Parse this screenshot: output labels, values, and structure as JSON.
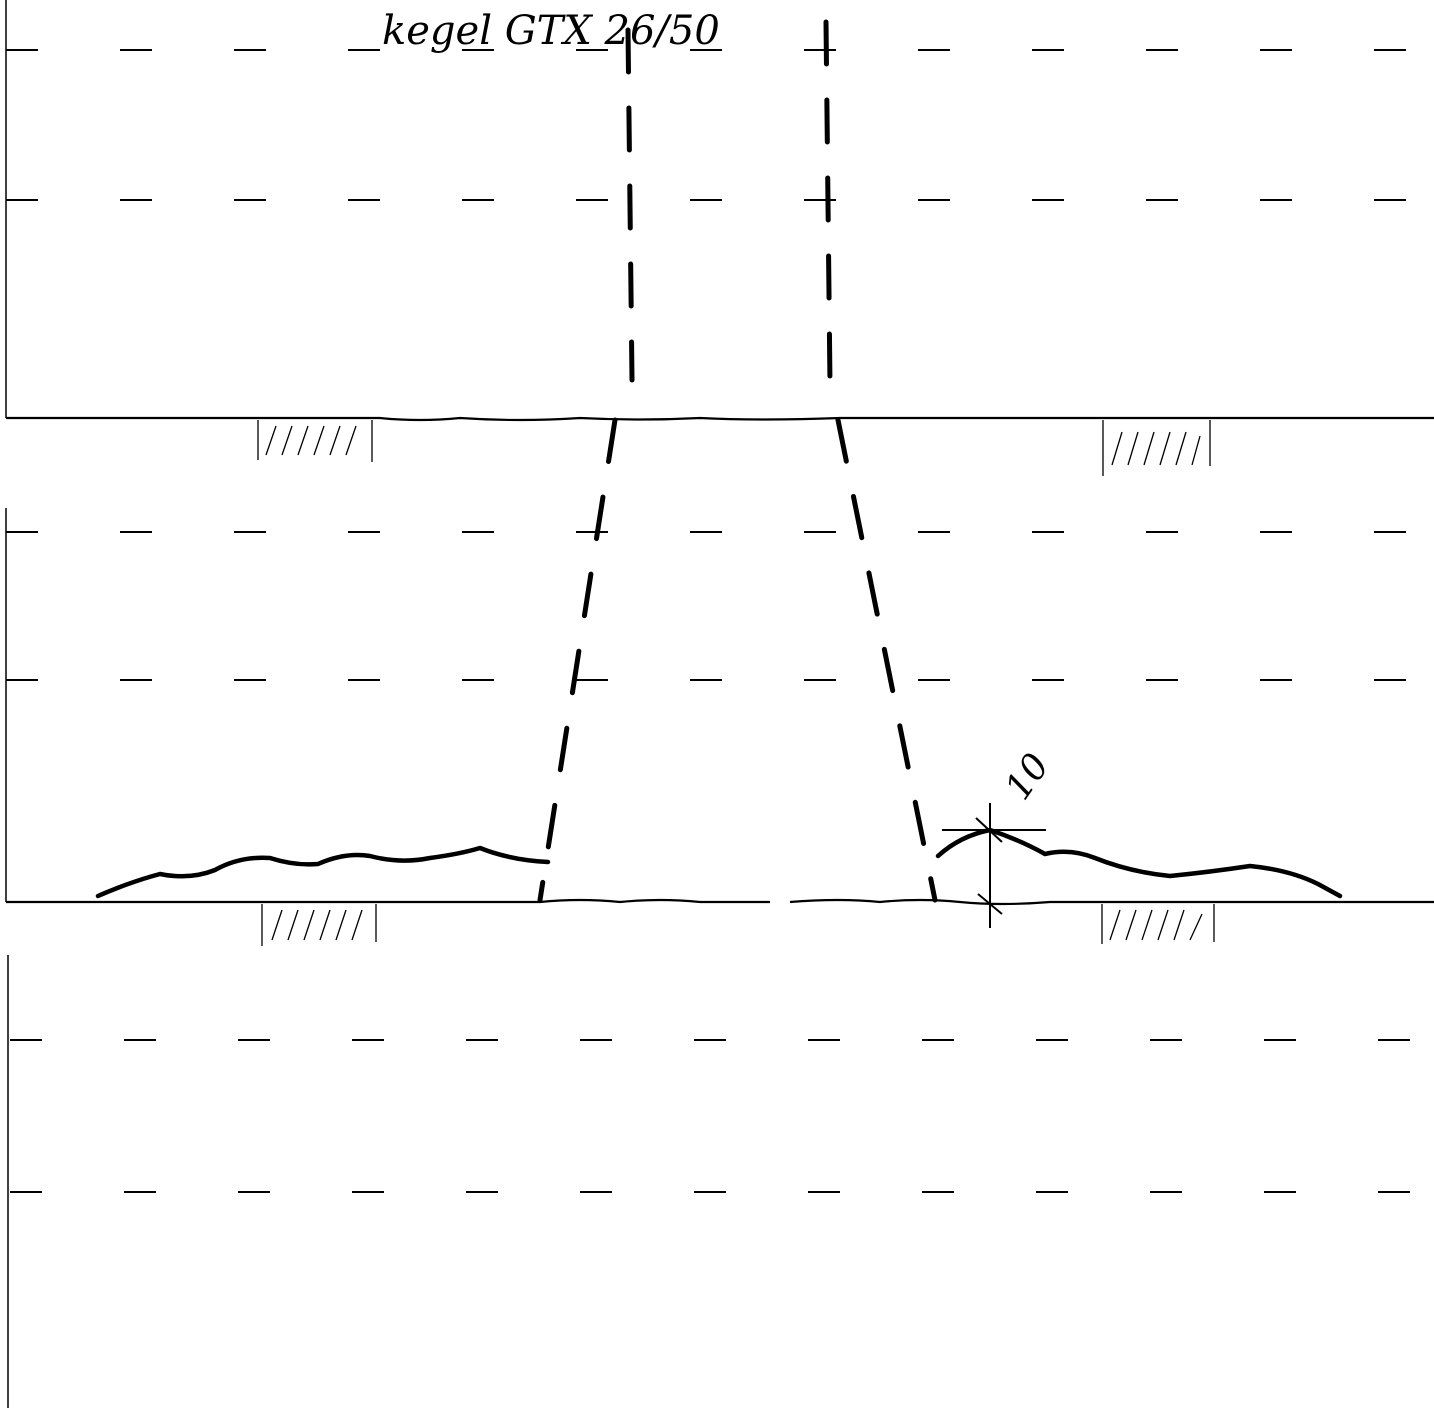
{
  "annotations": {
    "cone_label": "kegel GTX 26/50",
    "dimension_value": "10"
  },
  "colors": {
    "ink": "#000000",
    "paper": "#ffffff"
  }
}
